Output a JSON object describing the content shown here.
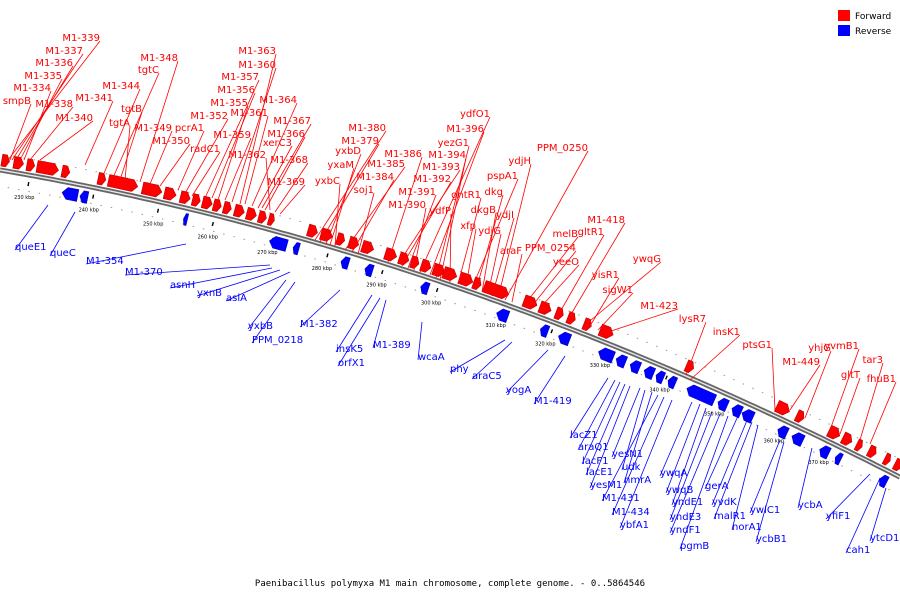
{
  "caption": "Paenibacillus polymyxa M1 main chromosome, complete genome. - 0..5864546",
  "legend": [
    {
      "label": "Forward",
      "color": "#ff0000"
    },
    {
      "label": "Reverse",
      "color": "#0000ff"
    }
  ],
  "colors": {
    "forward": "#ff0000",
    "reverse": "#0000ff",
    "backbone": "#999999"
  },
  "kbp_ticks": [
    "230 kbp",
    "240 kbp",
    "250 kbp",
    "260 kbp",
    "270 kbp",
    "280 kbp",
    "290 kbp",
    "300 kbp",
    "310 kbp",
    "320 kbp",
    "330 kbp",
    "340 kbp",
    "350 kbp",
    "360 kbp",
    "370 kbp"
  ],
  "forward_labels": [
    "M1-339",
    "M1-337",
    "M1-336",
    "M1-335",
    "M1-334",
    "smpB",
    "M1-338",
    "M1-340",
    "M1-341",
    "M1-344",
    "tgtC",
    "tgtB",
    "tgtA",
    "M1-348",
    "M1-349",
    "M1-350",
    "pcrA1",
    "M1-352",
    "radC1",
    "M1-357",
    "M1-356",
    "M1-355",
    "M1-359",
    "M1-360",
    "M1-363",
    "M1-361",
    "M1-364",
    "xerC3",
    "M1-367",
    "M1-366",
    "M1-362",
    "M1-368",
    "M1-369",
    "M1-380",
    "M1-379",
    "yxbD",
    "yxaM",
    "yxbC",
    "M1-385",
    "M1-384",
    "soj1",
    "M1-386",
    "M1-393",
    "M1-392",
    "M1-391",
    "M1-390",
    "ydfO1",
    "M1-396",
    "yezG1",
    "M1-394",
    "ydfP",
    "gntR1",
    "xfp",
    "pspA1",
    "dkg",
    "dkgB",
    "ydjG",
    "ydjI",
    "ydjH",
    "PPM_0250",
    "araF",
    "melB",
    "PPM_0254",
    "yeeO",
    "gltR1",
    "M1-418",
    "ywqG",
    "yisR1",
    "sigW1",
    "M1-423",
    "lysR7",
    "insK1",
    "ptsG1",
    "M1-449",
    "yhjG",
    "yvmB1",
    "gltT",
    "tar3",
    "fhuB1"
  ],
  "reverse_labels": [
    "queE1",
    "queC",
    "M1-354",
    "M1-370",
    "asnH",
    "yxnB",
    "aslA",
    "yxbB",
    "PPM_0218",
    "M1-382",
    "insK5",
    "orfX1",
    "M1-389",
    "wcaA",
    "phy",
    "araC5",
    "yogA",
    "M1-419",
    "lacZ1",
    "araQ1",
    "lacF1",
    "lacE1",
    "yesM1",
    "yesN1",
    "udk",
    "nmrA",
    "M1-431",
    "M1-434",
    "ybfA1",
    "ywqA",
    "ywqB",
    "yndE1",
    "yndE3",
    "yndF1",
    "pgmB",
    "gerA",
    "yvdK",
    "malR1",
    "norA1",
    "ywlC1",
    "ycbB1",
    "ycbA",
    "yfiF1",
    "cah1",
    "ytcD1"
  ]
}
